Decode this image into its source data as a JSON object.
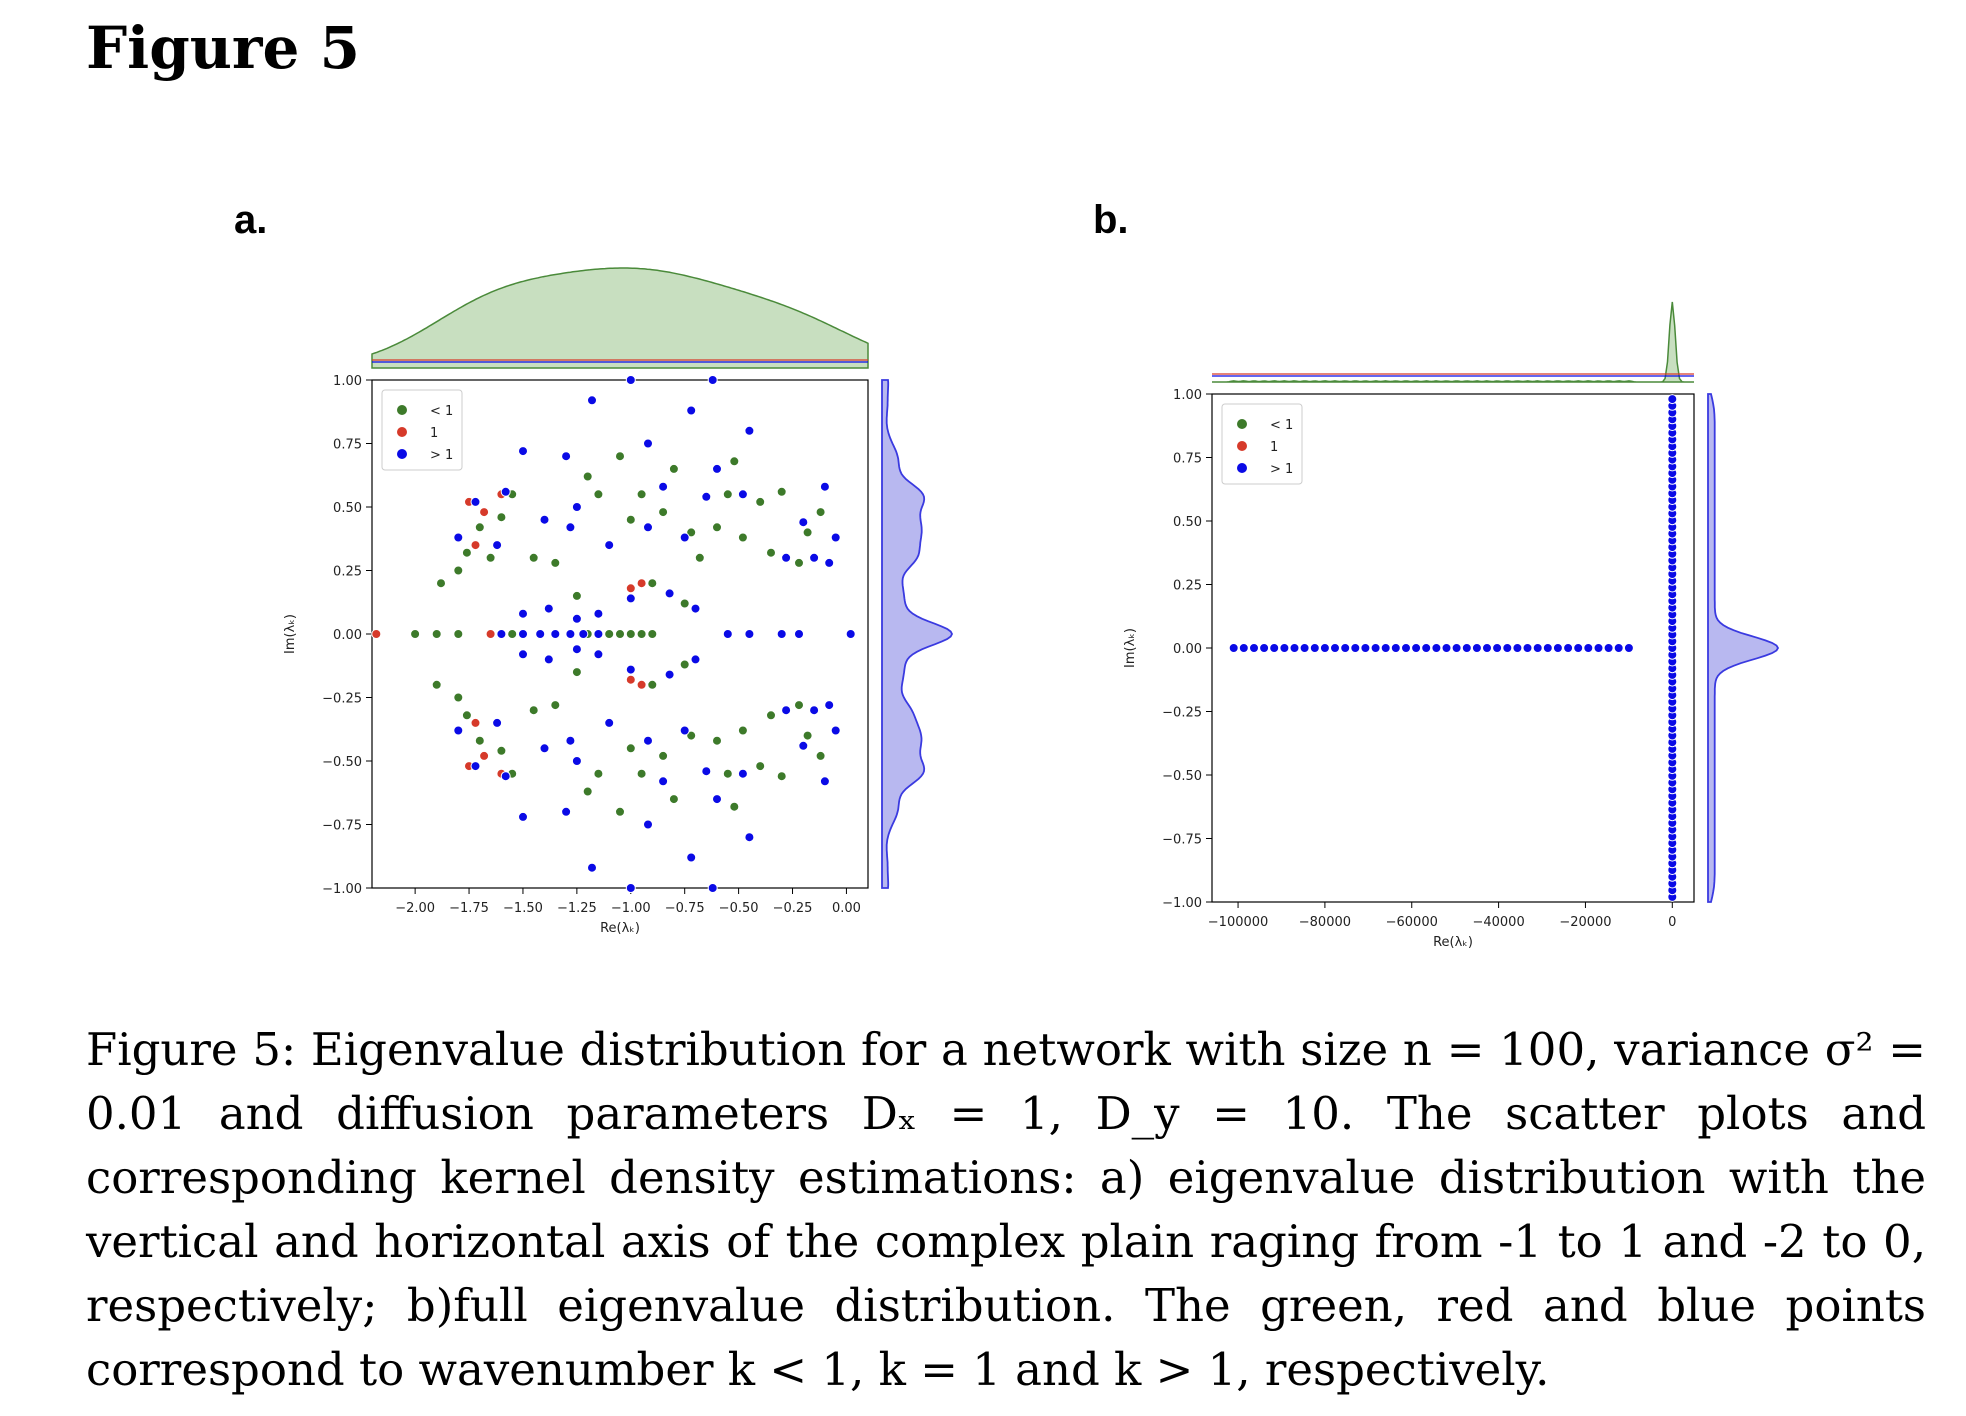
{
  "heading": "Figure 5",
  "panels": {
    "a": {
      "label": "a."
    },
    "b": {
      "label": "b."
    }
  },
  "caption": "Figure 5: Eigenvalue distribution for a network with size n = 100, variance σ² = 0.01 and diffusion parameters Dₓ = 1, D_y = 10. The scatter plots and corresponding kernel density estimations: a) eigenvalue distribution with the vertical and horizontal axis of the complex plain raging from -1 to 1 and -2 to 0, respectively; b)full eigenvalue distribution. The green, red and blue points correspond to wavenumber k < 1, k = 1 and k > 1, respectively.",
  "colors": {
    "green": "#3d7a2a",
    "red": "#d63a2a",
    "blue": "#0a0ae6",
    "kde_green": "#c8dfc0",
    "kde_blue": "#b8b8f0"
  },
  "chart_data": [
    {
      "type": "scatter",
      "xlabel": "Re(λₖ)",
      "ylabel": "Im(λₖ)",
      "xlim": [
        -2.2,
        0.1
      ],
      "ylim": [
        -1.0,
        1.0
      ],
      "xticks": [
        "−2.00",
        "−1.75",
        "−1.50",
        "−1.25",
        "−1.00",
        "−0.75",
        "−0.50",
        "−0.25",
        "0.00"
      ],
      "xtick_values": [
        -2.0,
        -1.75,
        -1.5,
        -1.25,
        -1.0,
        -0.75,
        -0.5,
        -0.25,
        0.0
      ],
      "yticks": [
        "1.00",
        "0.75",
        "0.50",
        "0.25",
        "0.00",
        "−0.25",
        "−0.50",
        "−0.75",
        "−1.00"
      ],
      "ytick_values": [
        1.0,
        0.75,
        0.5,
        0.25,
        0.0,
        -0.25,
        -0.5,
        -0.75,
        -1.0
      ],
      "legend": {
        "position": "upper-left",
        "entries": [
          "< 1",
          "1",
          "> 1"
        ]
      },
      "marginal_kde": {
        "top": "density of Re(λₖ)",
        "right": "density of Im(λₖ)"
      },
      "series": [
        {
          "name": "< 1",
          "color": "green",
          "points": [
            [
              -2.0,
              0.0
            ],
            [
              -1.9,
              0.0
            ],
            [
              -1.8,
              0.0
            ],
            [
              -1.55,
              0.0
            ],
            [
              -1.2,
              0.0
            ],
            [
              -1.1,
              0.0
            ],
            [
              -1.05,
              0.0
            ],
            [
              -1.0,
              0.0
            ],
            [
              -0.95,
              0.0
            ],
            [
              -0.9,
              0.0
            ],
            [
              -1.88,
              0.2
            ],
            [
              -1.8,
              0.25
            ],
            [
              -1.76,
              0.32
            ],
            [
              -1.7,
              0.42
            ],
            [
              -1.65,
              0.3
            ],
            [
              -1.6,
              0.46
            ],
            [
              -1.55,
              0.55
            ],
            [
              -1.45,
              0.3
            ],
            [
              -1.35,
              0.28
            ],
            [
              -1.2,
              0.62
            ],
            [
              -1.15,
              0.55
            ],
            [
              -1.05,
              0.7
            ],
            [
              -1.0,
              0.45
            ],
            [
              -0.95,
              0.55
            ],
            [
              -0.85,
              0.48
            ],
            [
              -0.8,
              0.65
            ],
            [
              -0.72,
              0.4
            ],
            [
              -0.68,
              0.3
            ],
            [
              -0.6,
              0.42
            ],
            [
              -0.55,
              0.55
            ],
            [
              -0.52,
              0.68
            ],
            [
              -0.48,
              0.38
            ],
            [
              -0.4,
              0.52
            ],
            [
              -0.35,
              0.32
            ],
            [
              -0.3,
              0.56
            ],
            [
              -0.22,
              0.28
            ],
            [
              -0.18,
              0.4
            ],
            [
              -0.12,
              0.48
            ],
            [
              -1.9,
              -0.2
            ],
            [
              -1.8,
              -0.25
            ],
            [
              -1.76,
              -0.32
            ],
            [
              -1.7,
              -0.42
            ],
            [
              -1.6,
              -0.46
            ],
            [
              -1.55,
              -0.55
            ],
            [
              -1.45,
              -0.3
            ],
            [
              -1.35,
              -0.28
            ],
            [
              -1.2,
              -0.62
            ],
            [
              -1.15,
              -0.55
            ],
            [
              -1.05,
              -0.7
            ],
            [
              -1.0,
              -0.45
            ],
            [
              -0.95,
              -0.55
            ],
            [
              -0.85,
              -0.48
            ],
            [
              -0.8,
              -0.65
            ],
            [
              -0.72,
              -0.4
            ],
            [
              -0.6,
              -0.42
            ],
            [
              -0.55,
              -0.55
            ],
            [
              -0.52,
              -0.68
            ],
            [
              -0.48,
              -0.38
            ],
            [
              -0.4,
              -0.52
            ],
            [
              -0.35,
              -0.32
            ],
            [
              -0.3,
              -0.56
            ],
            [
              -0.22,
              -0.28
            ],
            [
              -0.18,
              -0.4
            ],
            [
              -0.12,
              -0.48
            ],
            [
              -1.25,
              0.15
            ],
            [
              -1.25,
              -0.15
            ],
            [
              -0.9,
              0.2
            ],
            [
              -0.9,
              -0.2
            ],
            [
              -0.75,
              0.12
            ],
            [
              -0.75,
              -0.12
            ]
          ]
        },
        {
          "name": "1",
          "color": "red",
          "points": [
            [
              -2.18,
              0.0
            ],
            [
              -1.75,
              0.52
            ],
            [
              -1.68,
              0.48
            ],
            [
              -1.65,
              0.0
            ],
            [
              -1.6,
              0.55
            ],
            [
              -1.72,
              0.35
            ],
            [
              -1.0,
              0.18
            ],
            [
              -0.95,
              0.2
            ],
            [
              -1.75,
              -0.52
            ],
            [
              -1.68,
              -0.48
            ],
            [
              -1.6,
              -0.55
            ],
            [
              -1.72,
              -0.35
            ],
            [
              -1.0,
              -0.18
            ],
            [
              -0.95,
              -0.2
            ]
          ]
        },
        {
          "name": "> 1",
          "color": "blue",
          "points": [
            [
              -1.0,
              1.0
            ],
            [
              -0.62,
              1.0
            ],
            [
              -1.18,
              0.92
            ],
            [
              -0.72,
              0.88
            ],
            [
              -1.5,
              0.72
            ],
            [
              -1.3,
              0.7
            ],
            [
              -0.92,
              0.75
            ],
            [
              -0.6,
              0.65
            ],
            [
              -0.45,
              0.8
            ],
            [
              -0.1,
              0.58
            ],
            [
              -1.72,
              0.52
            ],
            [
              -1.58,
              0.56
            ],
            [
              -1.4,
              0.45
            ],
            [
              -1.25,
              0.5
            ],
            [
              -0.85,
              0.58
            ],
            [
              -0.65,
              0.54
            ],
            [
              -0.48,
              0.55
            ],
            [
              -0.2,
              0.44
            ],
            [
              -0.05,
              0.38
            ],
            [
              -1.8,
              0.38
            ],
            [
              -1.62,
              0.35
            ],
            [
              -1.28,
              0.42
            ],
            [
              -1.1,
              0.35
            ],
            [
              -0.92,
              0.42
            ],
            [
              -0.75,
              0.38
            ],
            [
              -0.28,
              0.3
            ],
            [
              -0.15,
              0.3
            ],
            [
              -0.08,
              0.28
            ],
            [
              -1.5,
              0.08
            ],
            [
              -1.38,
              0.1
            ],
            [
              -1.25,
              0.06
            ],
            [
              -1.15,
              0.08
            ],
            [
              -1.0,
              0.14
            ],
            [
              -0.82,
              0.16
            ],
            [
              -0.7,
              0.1
            ],
            [
              -1.6,
              0.0
            ],
            [
              -1.5,
              0.0
            ],
            [
              -1.42,
              0.0
            ],
            [
              -1.35,
              0.0
            ],
            [
              -1.28,
              0.0
            ],
            [
              -1.22,
              0.0
            ],
            [
              -1.15,
              0.0
            ],
            [
              -0.55,
              0.0
            ],
            [
              -0.45,
              0.0
            ],
            [
              -0.3,
              0.0
            ],
            [
              -0.22,
              0.0
            ],
            [
              0.02,
              0.0
            ],
            [
              -1.5,
              -0.08
            ],
            [
              -1.38,
              -0.1
            ],
            [
              -1.25,
              -0.06
            ],
            [
              -1.15,
              -0.08
            ],
            [
              -1.0,
              -0.14
            ],
            [
              -0.82,
              -0.16
            ],
            [
              -0.7,
              -0.1
            ],
            [
              -1.8,
              -0.38
            ],
            [
              -1.62,
              -0.35
            ],
            [
              -1.28,
              -0.42
            ],
            [
              -1.1,
              -0.35
            ],
            [
              -0.92,
              -0.42
            ],
            [
              -0.75,
              -0.38
            ],
            [
              -0.28,
              -0.3
            ],
            [
              -0.15,
              -0.3
            ],
            [
              -0.08,
              -0.28
            ],
            [
              -1.72,
              -0.52
            ],
            [
              -1.58,
              -0.56
            ],
            [
              -1.4,
              -0.45
            ],
            [
              -1.25,
              -0.5
            ],
            [
              -0.85,
              -0.58
            ],
            [
              -0.65,
              -0.54
            ],
            [
              -0.48,
              -0.55
            ],
            [
              -0.2,
              -0.44
            ],
            [
              -0.05,
              -0.38
            ],
            [
              -1.5,
              -0.72
            ],
            [
              -1.3,
              -0.7
            ],
            [
              -0.92,
              -0.75
            ],
            [
              -0.6,
              -0.65
            ],
            [
              -0.45,
              -0.8
            ],
            [
              -0.1,
              -0.58
            ],
            [
              -1.18,
              -0.92
            ],
            [
              -0.72,
              -0.88
            ],
            [
              -1.0,
              -1.0
            ],
            [
              -0.62,
              -1.0
            ]
          ]
        }
      ]
    },
    {
      "type": "scatter",
      "xlabel": "Re(λₖ)",
      "ylabel": "Im(λₖ)",
      "xlim": [
        -106000,
        5000
      ],
      "ylim": [
        -1.0,
        1.0
      ],
      "xticks": [
        "−100000",
        "−80000",
        "−60000",
        "−40000",
        "−20000",
        "0"
      ],
      "xtick_values": [
        -100000,
        -80000,
        -60000,
        -40000,
        -20000,
        0
      ],
      "yticks": [
        "1.00",
        "0.75",
        "0.50",
        "0.25",
        "0.00",
        "−0.25",
        "−0.50",
        "−0.75",
        "−1.00"
      ],
      "ytick_values": [
        1.0,
        0.75,
        0.5,
        0.25,
        0.0,
        -0.25,
        -0.5,
        -0.75,
        -1.0
      ],
      "legend": {
        "position": "upper-left",
        "entries": [
          "< 1",
          "1",
          "> 1"
        ]
      },
      "marginal_kde": {
        "top": "density of Re(λₖ)",
        "right": "density of Im(λₖ)"
      },
      "series": [
        {
          "name": "> 1",
          "color": "blue",
          "horizontal_points": {
            "x_from": -101000,
            "x_to": -10000,
            "y": 0.0,
            "count": 40
          },
          "vertical_points": {
            "x": 0,
            "y_from": -0.98,
            "y_to": 0.98,
            "count": 75
          }
        }
      ]
    }
  ]
}
